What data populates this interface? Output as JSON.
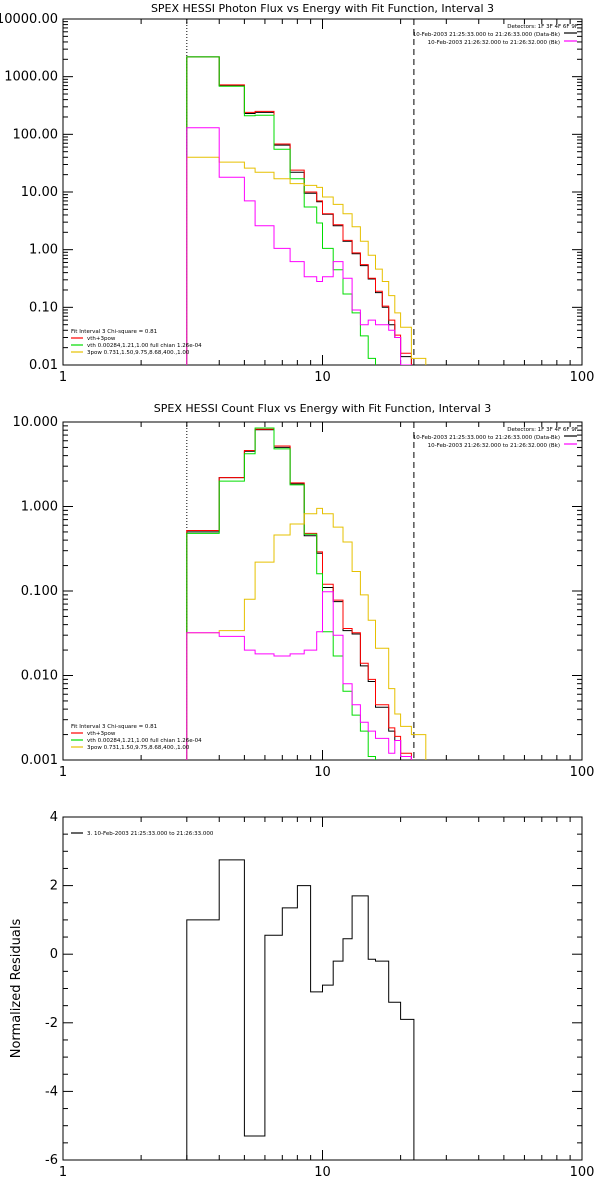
{
  "chart_data": [
    {
      "type": "line",
      "title": "SPEX HESSI Photon Flux vs Energy with Fit Function, Interval 3",
      "xlabel": "",
      "ylabel": "",
      "xscale": "log",
      "yscale": "log",
      "xlim": [
        1,
        100
      ],
      "ylim": [
        0.01,
        10000
      ],
      "xticks": [
        {
          "v": 1,
          "label": "1"
        },
        {
          "v": 10,
          "label": "10"
        },
        {
          "v": 100,
          "label": "100"
        }
      ],
      "yticks": [
        {
          "v": 0.01,
          "label": "0.01"
        },
        {
          "v": 0.1,
          "label": "0.10"
        },
        {
          "v": 1,
          "label": "1.00"
        },
        {
          "v": 10,
          "label": "10.00"
        },
        {
          "v": 100,
          "label": "100.00"
        },
        {
          "v": 1000,
          "label": "1000.00"
        },
        {
          "v": 10000,
          "label": "10000.00"
        }
      ],
      "vlines": [
        {
          "x": 3.0,
          "style": "dotted"
        },
        {
          "x": 22.5,
          "style": "dashed"
        }
      ],
      "header_lines": [
        "Detectors: 1F 3F 4F 6F 9F",
        "10-Feb-2003 21:25:33.000 to 21:26:33.000 (Data-Bk)",
        "10-Feb-2003 21:26:32.000 to 21:26:32.000 (Bk)"
      ],
      "header_swatches": [
        "#000000",
        "#ff00ff"
      ],
      "legend": {
        "title": "Fit Interval 3   Chi-square = 0.81",
        "items": [
          {
            "label": "vth+3pow",
            "color": "#ff0000"
          },
          {
            "label": "vth 0.00284,1.21,1.00  full chian 1.26e-04",
            "color": "#00dd00"
          },
          {
            "label": "3pow 0.731,1.50,9.75,8.68,400.,1.00",
            "color": "#e6c000"
          }
        ]
      },
      "edges": [
        3.0,
        3.5,
        4.0,
        4.5,
        5.0,
        5.5,
        6.0,
        6.5,
        7.0,
        7.5,
        8.0,
        8.5,
        9.0,
        9.5,
        10.0,
        11.0,
        12.0,
        13.0,
        14.0,
        15.0,
        16.0,
        17.0,
        18.0,
        19.0,
        20.0,
        22.0,
        25.0,
        28.0
      ],
      "series": [
        {
          "name": "",
          "color": "#000000",
          "values": [
            2200,
            2200,
            700,
            700,
            230,
            240,
            240,
            65,
            65,
            22,
            22,
            9.5,
            9.5,
            6.8,
            4.1,
            2.6,
            1.4,
            0.85,
            0.53,
            0.31,
            0.18,
            0.1,
            0.05,
            0.03,
            0.014,
            null,
            null
          ]
        },
        {
          "name": "",
          "color": "#ff0000",
          "values": [
            2200,
            2200,
            720,
            720,
            240,
            250,
            250,
            68,
            68,
            24,
            24,
            10,
            10,
            7.0,
            4.2,
            2.7,
            1.45,
            0.88,
            0.55,
            0.32,
            0.19,
            0.105,
            0.06,
            0.033,
            0.016,
            null,
            null
          ]
        },
        {
          "name": "",
          "color": "#00dd00",
          "values": [
            2200,
            2200,
            680,
            680,
            210,
            215,
            215,
            55,
            55,
            17,
            17,
            5.5,
            5.5,
            2.9,
            1.05,
            0.45,
            0.17,
            0.08,
            0.032,
            0.013,
            null,
            null,
            null,
            null,
            null,
            null,
            null
          ]
        },
        {
          "name": "",
          "color": "#e6c000",
          "values": [
            40,
            40,
            33,
            33,
            26,
            22,
            22,
            17,
            17,
            14,
            14,
            13,
            13,
            12,
            8.2,
            6.1,
            4.2,
            2.5,
            1.4,
            0.8,
            0.46,
            0.28,
            0.16,
            0.08,
            0.045,
            0.013,
            null
          ]
        },
        {
          "name": "",
          "color": "#ff00ff",
          "values": [
            130,
            130,
            18,
            18,
            7.0,
            2.6,
            2.6,
            1.05,
            1.05,
            0.62,
            0.62,
            0.34,
            0.34,
            0.28,
            0.34,
            0.62,
            0.32,
            0.09,
            0.05,
            0.06,
            0.05,
            0.05,
            0.04,
            0.03,
            0.01,
            null,
            null
          ]
        }
      ]
    },
    {
      "type": "line",
      "title": "SPEX HESSI Count Flux vs Energy with Fit Function, Interval 3",
      "xlabel": "",
      "ylabel": "",
      "xscale": "log",
      "yscale": "log",
      "xlim": [
        1,
        100
      ],
      "ylim": [
        0.001,
        10
      ],
      "xticks": [
        {
          "v": 1,
          "label": "1"
        },
        {
          "v": 10,
          "label": "10"
        },
        {
          "v": 100,
          "label": "100"
        }
      ],
      "yticks": [
        {
          "v": 0.001,
          "label": "0.001"
        },
        {
          "v": 0.01,
          "label": "0.010"
        },
        {
          "v": 0.1,
          "label": "0.100"
        },
        {
          "v": 1,
          "label": "1.000"
        },
        {
          "v": 10,
          "label": "10.000"
        }
      ],
      "vlines": [
        {
          "x": 3.0,
          "style": "dotted"
        },
        {
          "x": 22.5,
          "style": "dashed"
        }
      ],
      "header_lines": [
        "Detectors: 1F 3F 4F 6F 9F",
        "10-Feb-2003 21:25:33.000 to 21:26:33.000 (Data-Bk)",
        "10-Feb-2003 21:26:32.000 to 21:26:32.000 (Bk)"
      ],
      "header_swatches": [
        "#000000",
        "#ff00ff"
      ],
      "legend": {
        "title": "Fit Interval 3   Chi-square = 0.81",
        "items": [
          {
            "label": "vth+3pow",
            "color": "#ff0000"
          },
          {
            "label": "vth 0.00284,1.21,1.00  full chian 1.26e-04",
            "color": "#00dd00"
          },
          {
            "label": "3pow 0.731,1.50,9.75,8.68,400.,1.00",
            "color": "#e6c000"
          }
        ]
      },
      "edges": [
        3.0,
        3.5,
        4.0,
        4.5,
        5.0,
        5.5,
        6.0,
        6.5,
        7.0,
        7.5,
        8.0,
        8.5,
        9.0,
        9.5,
        10.0,
        11.0,
        12.0,
        13.0,
        14.0,
        15.0,
        16.0,
        17.0,
        18.0,
        19.0,
        20.0,
        22.0,
        25.0,
        28.0
      ],
      "series": [
        {
          "name": "",
          "color": "#000000",
          "values": [
            0.5,
            0.5,
            2.2,
            2.2,
            4.5,
            8.1,
            8.1,
            5.0,
            5.0,
            1.85,
            1.85,
            0.45,
            0.45,
            0.28,
            0.11,
            0.075,
            0.034,
            0.031,
            0.013,
            0.0085,
            0.0042,
            0.0042,
            0.0022,
            0.0017,
            0.0011,
            null,
            null
          ]
        },
        {
          "name": "",
          "color": "#ff0000",
          "values": [
            0.52,
            0.52,
            2.2,
            2.2,
            4.6,
            8.2,
            8.2,
            5.2,
            5.2,
            1.9,
            1.9,
            0.48,
            0.48,
            0.29,
            0.12,
            0.078,
            0.036,
            0.032,
            0.014,
            0.009,
            0.0045,
            0.0045,
            0.0024,
            0.0019,
            0.0012,
            null,
            null
          ]
        },
        {
          "name": "",
          "color": "#00dd00",
          "values": [
            0.48,
            0.48,
            2.0,
            2.0,
            4.2,
            8.5,
            8.5,
            4.8,
            4.8,
            1.8,
            1.8,
            0.47,
            0.47,
            0.16,
            0.033,
            0.017,
            0.0065,
            0.0034,
            0.0022,
            0.0011,
            null,
            null,
            null,
            null,
            null,
            null,
            null
          ]
        },
        {
          "name": "",
          "color": "#e6c000",
          "values": [
            0.032,
            0.032,
            0.034,
            0.034,
            0.08,
            0.22,
            0.22,
            0.46,
            0.46,
            0.62,
            0.62,
            0.82,
            0.82,
            0.95,
            0.82,
            0.57,
            0.38,
            0.17,
            0.09,
            0.045,
            0.021,
            0.021,
            0.007,
            0.0035,
            0.0025,
            0.002,
            null
          ]
        },
        {
          "name": "",
          "color": "#ff00ff",
          "values": [
            0.032,
            0.032,
            0.029,
            0.029,
            0.02,
            0.018,
            0.018,
            0.017,
            0.017,
            0.018,
            0.018,
            0.02,
            0.02,
            0.033,
            0.098,
            0.03,
            0.008,
            0.0045,
            0.0028,
            0.0022,
            0.0018,
            0.0018,
            0.0012,
            0.0017,
            0.0011,
            null,
            null
          ]
        }
      ]
    },
    {
      "type": "line",
      "title": "",
      "xlabel": "",
      "ylabel": "Normalized Residuals",
      "xscale": "log",
      "yscale": "linear",
      "xlim": [
        1,
        100
      ],
      "ylim": [
        -6,
        4
      ],
      "xticks": [
        {
          "v": 1,
          "label": "1"
        },
        {
          "v": 10,
          "label": "10"
        },
        {
          "v": 100,
          "label": "100"
        }
      ],
      "yticks": [
        {
          "v": -6,
          "label": "-6"
        },
        {
          "v": -4,
          "label": "-4"
        },
        {
          "v": -2,
          "label": "-2"
        },
        {
          "v": 0,
          "label": "0"
        },
        {
          "v": 2,
          "label": "2"
        },
        {
          "v": 4,
          "label": "4"
        }
      ],
      "legend": {
        "title": "",
        "items": [
          {
            "label": "3. 10-Feb-2003 21:25:33.000 to 21:26:33.000",
            "color": "#000000"
          }
        ]
      },
      "edges": [
        3.0,
        4.0,
        5.0,
        6.0,
        7.0,
        8.0,
        8.5,
        9.0,
        10.0,
        11.0,
        12.0,
        13.0,
        14.0,
        15.0,
        16.0,
        17.0,
        18.0,
        19.0,
        20.0,
        22.5
      ],
      "series": [
        {
          "name": "",
          "color": "#000000",
          "values": [
            1.0,
            2.75,
            -5.3,
            0.55,
            1.35,
            2.0,
            2.0,
            -1.1,
            -0.9,
            -0.2,
            0.45,
            1.7,
            1.7,
            -0.15,
            -0.2,
            -0.2,
            -1.4,
            -1.4,
            -1.9
          ]
        }
      ]
    }
  ]
}
